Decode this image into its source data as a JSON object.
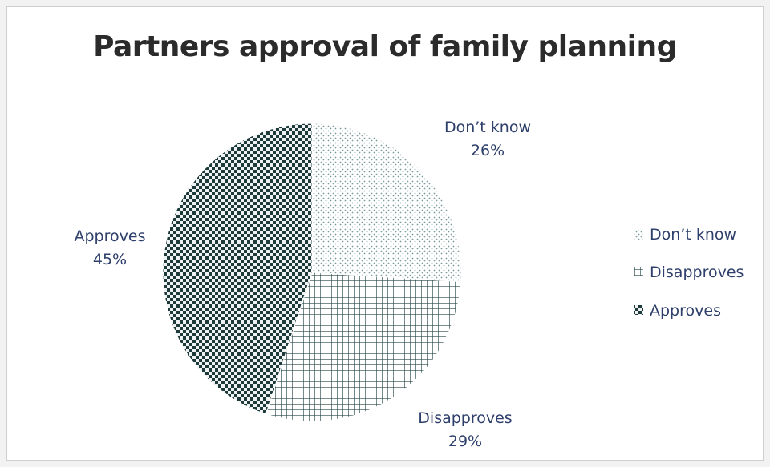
{
  "chart_data": {
    "type": "pie",
    "title": "Partners approval of family planning",
    "categories": [
      "Don’t know",
      "Disapproves",
      "Approves"
    ],
    "values": [
      26,
      29,
      45
    ],
    "labels": [
      "Don’t know",
      "Disapproves",
      "Approves"
    ],
    "value_labels": [
      "26%",
      "29%",
      "45%"
    ],
    "legend_position": "right",
    "legend_entries": [
      "Don’t know",
      "Disapproves",
      "Approves"
    ],
    "colors": {
      "dont_know": "#7d9a9a",
      "disapproves": "#2a4a4a",
      "approves": "#1f3a3a",
      "label_text": "#2d3f6a"
    }
  }
}
